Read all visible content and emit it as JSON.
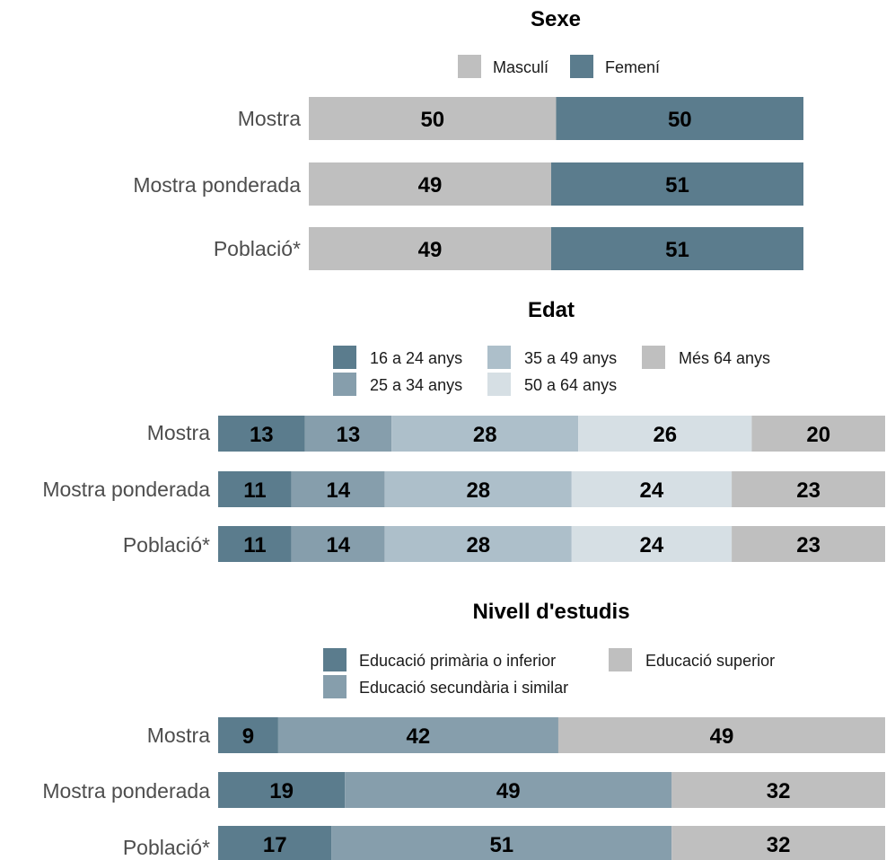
{
  "chart_data": [
    {
      "type": "bar",
      "stacked": "horizontal-100",
      "title": "Sexe",
      "categories": [
        "Mostra",
        "Mostra ponderada",
        "Població*"
      ],
      "series": [
        {
          "name": "Masculí",
          "color": "#bfbfbf",
          "values": [
            50,
            49,
            49
          ]
        },
        {
          "name": "Femení",
          "color": "#5b7c8d",
          "values": [
            50,
            51,
            51
          ]
        }
      ]
    },
    {
      "type": "bar",
      "stacked": "horizontal-100",
      "title": "Edat",
      "categories": [
        "Mostra",
        "Mostra ponderada",
        "Població*"
      ],
      "series": [
        {
          "name": "16 a 24 anys",
          "color": "#5b7c8d",
          "values": [
            13,
            11,
            11
          ]
        },
        {
          "name": "25 a 34 anys",
          "color": "#869eac",
          "values": [
            13,
            14,
            14
          ]
        },
        {
          "name": "35 a 49 anys",
          "color": "#adbfca",
          "values": [
            28,
            28,
            28
          ]
        },
        {
          "name": "50 a 64 anys",
          "color": "#d6dfe4",
          "values": [
            26,
            24,
            24
          ]
        },
        {
          "name": "Més 64 anys",
          "color": "#bfbfbf",
          "values": [
            20,
            23,
            23
          ]
        }
      ]
    },
    {
      "type": "bar",
      "stacked": "horizontal-100",
      "title": "Nivell d'estudis",
      "categories": [
        "Mostra",
        "Mostra ponderada",
        "Població*"
      ],
      "series": [
        {
          "name": "Educació primària o inferior",
          "color": "#5b7c8d",
          "values": [
            9,
            19,
            17
          ]
        },
        {
          "name": "Educació secundària i similar",
          "color": "#869eac",
          "values": [
            42,
            49,
            51
          ]
        },
        {
          "name": "Educació superior",
          "color": "#bfbfbf",
          "values": [
            49,
            32,
            32
          ]
        }
      ]
    }
  ]
}
